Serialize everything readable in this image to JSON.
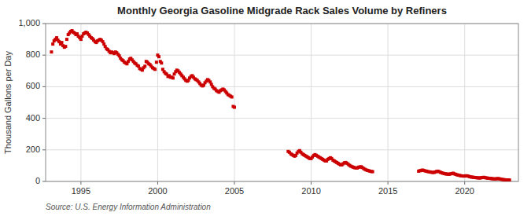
{
  "chart_data": {
    "type": "scatter",
    "title": "Monthly Georgia Gasoline Midgrade Rack Sales Volume by Refiners",
    "ylabel": "Thousand Gallons per Day",
    "annotation": "Source: U.S. Energy Information Administration",
    "color": "#cc0000",
    "marker": "square",
    "grid": true,
    "xlim": [
      1992.7,
      2023.5
    ],
    "xticks": [
      1995,
      2000,
      2005,
      2010,
      2015,
      2020
    ],
    "ylim": [
      0,
      1000
    ],
    "yticks": [
      0,
      200,
      400,
      600,
      800,
      {
        "value": 1000,
        "label": "1,000"
      }
    ],
    "x": [
      1993.08,
      1993.17,
      1993.25,
      1993.33,
      1993.42,
      1993.5,
      1993.58,
      1993.67,
      1993.75,
      1993.83,
      1993.92,
      1994.0,
      1994.08,
      1994.17,
      1994.25,
      1994.33,
      1994.42,
      1994.5,
      1994.58,
      1994.67,
      1994.75,
      1994.83,
      1994.92,
      1995.0,
      1995.08,
      1995.17,
      1995.25,
      1995.33,
      1995.42,
      1995.5,
      1995.58,
      1995.67,
      1995.75,
      1995.83,
      1995.92,
      1996.0,
      1996.08,
      1996.17,
      1996.25,
      1996.33,
      1996.42,
      1996.5,
      1996.58,
      1996.67,
      1996.75,
      1996.83,
      1996.92,
      1997.0,
      1997.08,
      1997.17,
      1997.25,
      1997.33,
      1997.42,
      1997.5,
      1997.58,
      1997.67,
      1997.75,
      1997.83,
      1997.92,
      1998.0,
      1998.08,
      1998.17,
      1998.25,
      1998.33,
      1998.42,
      1998.5,
      1998.58,
      1998.67,
      1998.75,
      1998.83,
      1998.92,
      1999.0,
      1999.08,
      1999.17,
      1999.25,
      1999.33,
      1999.42,
      1999.5,
      1999.58,
      1999.67,
      1999.75,
      1999.83,
      1999.92,
      2000.0,
      2000.08,
      2000.17,
      2000.25,
      2000.33,
      2000.42,
      2000.5,
      2000.58,
      2000.67,
      2000.75,
      2000.83,
      2000.92,
      2001.0,
      2001.08,
      2001.17,
      2001.25,
      2001.33,
      2001.42,
      2001.5,
      2001.58,
      2001.67,
      2001.75,
      2001.83,
      2001.92,
      2002.0,
      2002.08,
      2002.17,
      2002.25,
      2002.33,
      2002.42,
      2002.5,
      2002.58,
      2002.67,
      2002.75,
      2002.83,
      2002.92,
      2003.0,
      2003.08,
      2003.17,
      2003.25,
      2003.33,
      2003.42,
      2003.5,
      2003.58,
      2003.67,
      2003.75,
      2003.83,
      2003.92,
      2004.0,
      2004.08,
      2004.17,
      2004.25,
      2004.33,
      2004.42,
      2004.5,
      2004.58,
      2004.67,
      2004.75,
      2004.83,
      2004.92,
      2005.0,
      2008.5,
      2008.58,
      2008.67,
      2008.75,
      2008.83,
      2008.92,
      2009.0,
      2009.08,
      2009.17,
      2009.25,
      2009.33,
      2009.42,
      2009.5,
      2009.58,
      2009.67,
      2009.75,
      2009.83,
      2009.92,
      2010.0,
      2010.08,
      2010.17,
      2010.25,
      2010.33,
      2010.42,
      2010.5,
      2010.58,
      2010.67,
      2010.75,
      2010.83,
      2010.92,
      2011.0,
      2011.08,
      2011.17,
      2011.25,
      2011.33,
      2011.42,
      2011.5,
      2011.58,
      2011.67,
      2011.75,
      2011.83,
      2011.92,
      2012.0,
      2012.08,
      2012.17,
      2012.25,
      2012.33,
      2012.42,
      2012.5,
      2012.58,
      2012.67,
      2012.75,
      2012.83,
      2012.92,
      2013.0,
      2013.08,
      2013.17,
      2013.25,
      2013.33,
      2013.42,
      2013.5,
      2013.58,
      2013.67,
      2013.75,
      2013.83,
      2013.92,
      2014.0,
      2017.0,
      2017.08,
      2017.17,
      2017.25,
      2017.33,
      2017.42,
      2017.5,
      2017.58,
      2017.67,
      2017.75,
      2017.83,
      2017.92,
      2018.0,
      2018.08,
      2018.17,
      2018.25,
      2018.33,
      2018.42,
      2018.5,
      2018.58,
      2018.67,
      2018.75,
      2018.83,
      2018.92,
      2019.0,
      2019.08,
      2019.17,
      2019.25,
      2019.33,
      2019.42,
      2019.5,
      2019.58,
      2019.67,
      2019.75,
      2019.83,
      2019.92,
      2020.0,
      2020.08,
      2020.17,
      2020.25,
      2020.33,
      2020.42,
      2020.5,
      2020.58,
      2020.67,
      2020.75,
      2020.83,
      2020.92,
      2021.0,
      2021.08,
      2021.17,
      2021.25,
      2021.33,
      2021.42,
      2021.5,
      2021.58,
      2021.67,
      2021.75,
      2021.83,
      2021.92,
      2022.0,
      2022.08,
      2022.17,
      2022.25,
      2022.33,
      2022.42,
      2022.5,
      2022.58,
      2022.67,
      2022.75,
      2022.83,
      2022.92
    ],
    "values": [
      820,
      870,
      890,
      900,
      910,
      895,
      885,
      870,
      880,
      860,
      850,
      855,
      900,
      930,
      940,
      950,
      955,
      945,
      940,
      930,
      935,
      920,
      910,
      900,
      920,
      935,
      940,
      945,
      940,
      930,
      920,
      910,
      905,
      895,
      885,
      880,
      890,
      895,
      900,
      895,
      885,
      870,
      855,
      840,
      835,
      825,
      815,
      820,
      815,
      810,
      820,
      815,
      805,
      795,
      780,
      770,
      765,
      755,
      750,
      745,
      760,
      775,
      780,
      770,
      760,
      750,
      745,
      735,
      730,
      715,
      710,
      705,
      720,
      730,
      760,
      755,
      745,
      740,
      730,
      720,
      715,
      710,
      755,
      800,
      790,
      760,
      750,
      710,
      695,
      685,
      680,
      665,
      670,
      660,
      660,
      655,
      680,
      695,
      705,
      700,
      690,
      680,
      670,
      660,
      650,
      640,
      635,
      640,
      655,
      665,
      670,
      660,
      650,
      645,
      640,
      630,
      620,
      610,
      605,
      610,
      625,
      635,
      645,
      640,
      630,
      615,
      600,
      590,
      585,
      575,
      570,
      565,
      575,
      580,
      585,
      580,
      570,
      560,
      550,
      545,
      540,
      535,
      475,
      470,
      190,
      185,
      175,
      170,
      165,
      160,
      165,
      180,
      190,
      195,
      185,
      175,
      170,
      165,
      160,
      155,
      150,
      145,
      145,
      155,
      165,
      170,
      165,
      160,
      155,
      150,
      145,
      140,
      135,
      130,
      130,
      140,
      145,
      150,
      145,
      135,
      130,
      125,
      120,
      115,
      110,
      105,
      105,
      112,
      118,
      120,
      115,
      108,
      102,
      97,
      93,
      90,
      87,
      85,
      85,
      90,
      92,
      93,
      88,
      82,
      77,
      73,
      70,
      68,
      65,
      63,
      62,
      65,
      68,
      70,
      72,
      70,
      67,
      65,
      63,
      61,
      60,
      58,
      57,
      57,
      60,
      63,
      65,
      62,
      58,
      55,
      52,
      50,
      48,
      47,
      46,
      46,
      48,
      50,
      52,
      48,
      45,
      42,
      40,
      38,
      36,
      35,
      34,
      34,
      36,
      35,
      33,
      30,
      28,
      27,
      26,
      25,
      24,
      23,
      22,
      22,
      24,
      25,
      26,
      24,
      22,
      21,
      20,
      19,
      18,
      17,
      16,
      16,
      17,
      18,
      17,
      15,
      13,
      12,
      11,
      10,
      10,
      9,
      9
    ]
  }
}
